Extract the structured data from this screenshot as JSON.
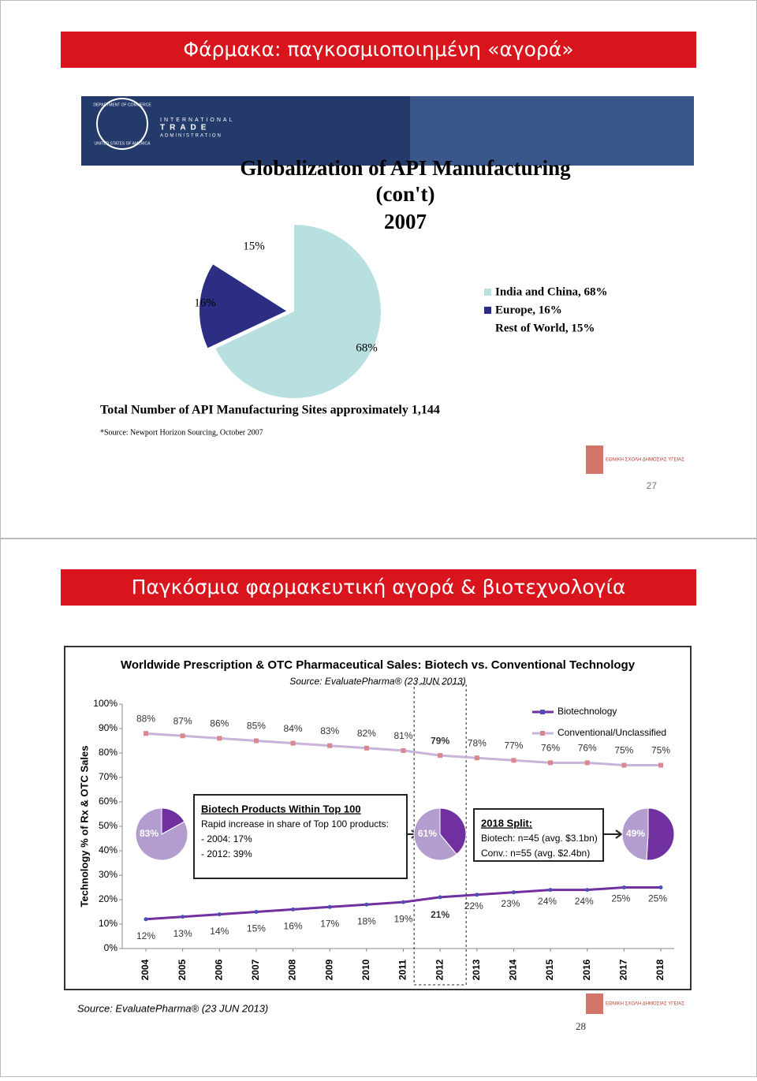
{
  "slides": [
    {
      "title": "Φάρμακα: παγκοσμιοποιημένη «αγορά»",
      "page_number": "27",
      "banner": {
        "seal_top": "DEPARTMENT OF COMMERCE",
        "seal_bottom": "UNITED STATES OF AMERICA",
        "agency_lines": [
          "INTERNATIONAL",
          "TRADE",
          "ADMINISTRATION"
        ]
      },
      "logo": "ΕΘΝΙΚΗ ΣΧΟΛΗ ΔΗΜΟΣΙΑΣ ΥΓΕΙΑΣ"
    },
    {
      "title": "Παγκόσμια φαρμακευτική αγορά & βιοτεχνολογία",
      "page_number": "28",
      "source": "Source: EvaluatePharma® (23 JUN 2013)",
      "logo": "ΕΘΝΙΚΗ ΣΧΟΛΗ ΔΗΜΟΣΙΑΣ ΥΓΕΙΑΣ"
    }
  ],
  "chart_data": [
    {
      "type": "pie",
      "title": "Globalization of API Manufacturing",
      "subtitle": "(con't)",
      "year": "2007",
      "categories": [
        "India and China",
        "Europe",
        "Rest of World"
      ],
      "values": [
        68,
        16,
        15
      ],
      "value_labels": [
        "68%",
        "16%",
        "15%"
      ],
      "legend_labels": [
        "India and China, 68%",
        "Europe, 16%",
        "Rest of World, 15%"
      ],
      "colors": [
        "#b9e0e1",
        "#2b2e83",
        "#ffffff"
      ],
      "legend": "right",
      "notes": [
        "Total Number of API Manufacturing Sites approximately 1,144",
        "*Source:  Newport Horizon Sourcing, October 2007"
      ]
    },
    {
      "type": "line",
      "title": "Worldwide Prescription & OTC Pharmaceutical Sales: Biotech vs. Conventional Technology",
      "subtitle": "Source: EvaluatePharma® (23 JUN 2013)",
      "y_label": "Technology % of Rx & OTC Sales",
      "categories": [
        "2004",
        "2005",
        "2006",
        "2007",
        "2008",
        "2009",
        "2010",
        "2011",
        "2012",
        "2013",
        "2014",
        "2015",
        "2016",
        "2017",
        "2018"
      ],
      "series": [
        {
          "name": "Biotechnology",
          "color": "#7030a0",
          "marker_color": "#4f4fb8",
          "values": [
            12,
            13,
            14,
            15,
            16,
            17,
            18,
            19,
            21,
            22,
            23,
            24,
            24,
            25,
            25
          ],
          "value_labels": [
            "12%",
            "13%",
            "14%",
            "15%",
            "16%",
            "17%",
            "18%",
            "19%",
            "21%",
            "22%",
            "23%",
            "24%",
            "24%",
            "25%",
            "25%"
          ]
        },
        {
          "name": "Conventional/Unclassified",
          "color": "#c9b3db",
          "marker_color": "#d9868e",
          "values": [
            88,
            87,
            86,
            85,
            84,
            83,
            82,
            81,
            79,
            78,
            77,
            76,
            76,
            75,
            75
          ],
          "value_labels": [
            "88%",
            "87%",
            "86%",
            "85%",
            "84%",
            "83%",
            "82%",
            "81%",
            "79%",
            "78%",
            "77%",
            "76%",
            "76%",
            "75%",
            "75%"
          ]
        }
      ],
      "ylim": [
        0,
        100
      ],
      "yticks": [
        {
          "value": 0,
          "label": "0%"
        },
        {
          "value": 10,
          "label": "10%"
        },
        {
          "value": 20,
          "label": "20%"
        },
        {
          "value": 30,
          "label": "30%"
        },
        {
          "value": 40,
          "label": "40%"
        },
        {
          "value": 50,
          "label": "50%"
        },
        {
          "value": 60,
          "label": "60%"
        },
        {
          "value": 70,
          "label": "70%"
        },
        {
          "value": 80,
          "label": "80%"
        },
        {
          "value": 90,
          "label": "90%"
        },
        {
          "value": 100,
          "label": "100%"
        }
      ],
      "legend": "top-right",
      "annotations": [
        {
          "title": "Biotech Products Within Top 100",
          "lines": [
            "Rapid increase in share of Top 100 products:",
            "- 2004: 17%",
            "- 2012: 39%"
          ]
        },
        {
          "title": "2018 Split:",
          "lines": [
            "Biotech: n=45 (avg. $3.1bn)",
            "Conv.: n=55 (avg. $2.4bn)"
          ]
        }
      ],
      "inset_pies": [
        {
          "conventional": 83,
          "biotech": 17,
          "label": "83%"
        },
        {
          "conventional": 61,
          "biotech": 39,
          "label": "61%"
        },
        {
          "conventional": 49,
          "biotech": 51,
          "label": "49%"
        }
      ]
    }
  ]
}
